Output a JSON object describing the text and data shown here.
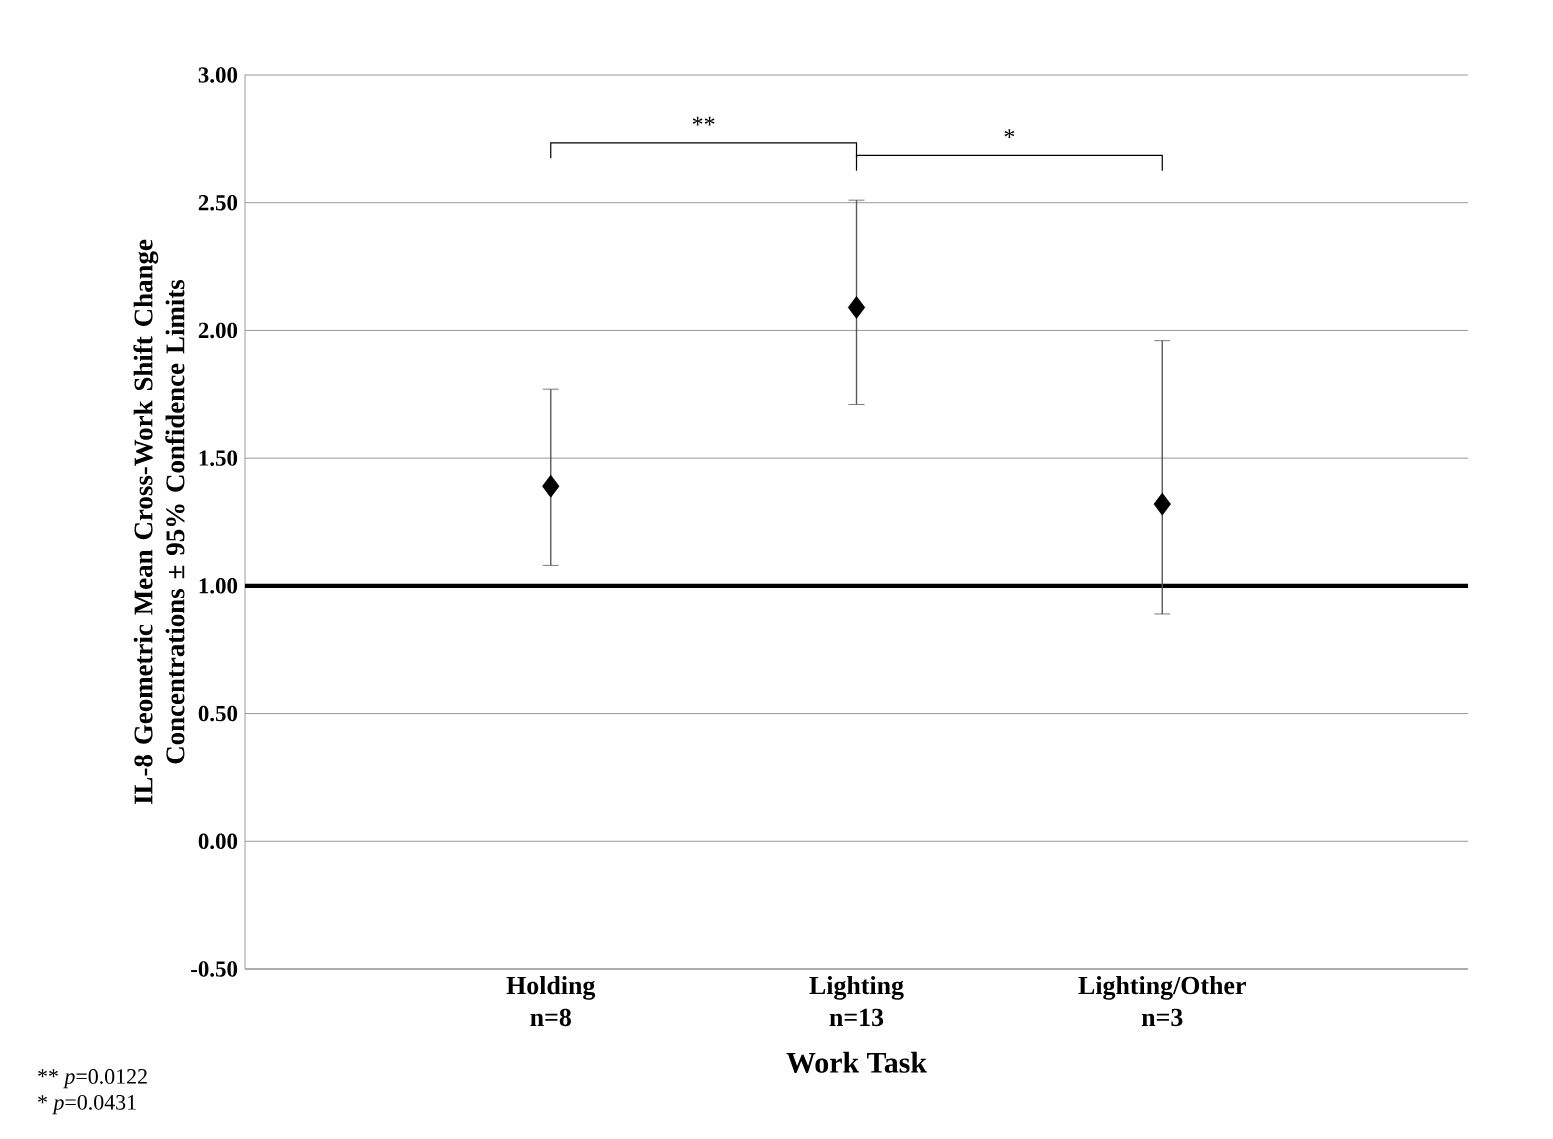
{
  "chart_data": {
    "type": "scatter",
    "xlabel": "Work Task",
    "ylabel": "IL-8 Geometric Mean Cross-Work Shift Change Concentrations ± 95% Confidence Limits",
    "categories": [
      "Holding n=8",
      "Lighting n=13",
      "Lighting/Other n=3"
    ],
    "values": [
      1.39,
      2.09,
      1.32
    ],
    "errors": [
      [
        1.08,
        1.77
      ],
      [
        1.71,
        2.51
      ],
      [
        0.89,
        1.96
      ]
    ],
    "color": "#000000",
    "marker": "diamond",
    "ylim": [
      -0.5,
      3.0
    ],
    "yticks": [
      {
        "value": -0.5,
        "label": "-0.50"
      },
      {
        "value": 0,
        "label": "0.00"
      },
      {
        "value": 0.5,
        "label": "0.50"
      },
      {
        "value": 1,
        "label": "1.00"
      },
      {
        "value": 1.5,
        "label": "1.50"
      },
      {
        "value": 2,
        "label": "2.00"
      },
      {
        "value": 2.5,
        "label": "2.50"
      },
      {
        "value": 3,
        "label": "3.00"
      }
    ],
    "grid": "y",
    "ref_lines": [
      {
        "axis": "y",
        "value": 1,
        "color": "#000000"
      }
    ],
    "annotations": [
      "**",
      "*",
      "** *p*=0.0122",
      "* *p*=0.0431"
    ]
  }
}
